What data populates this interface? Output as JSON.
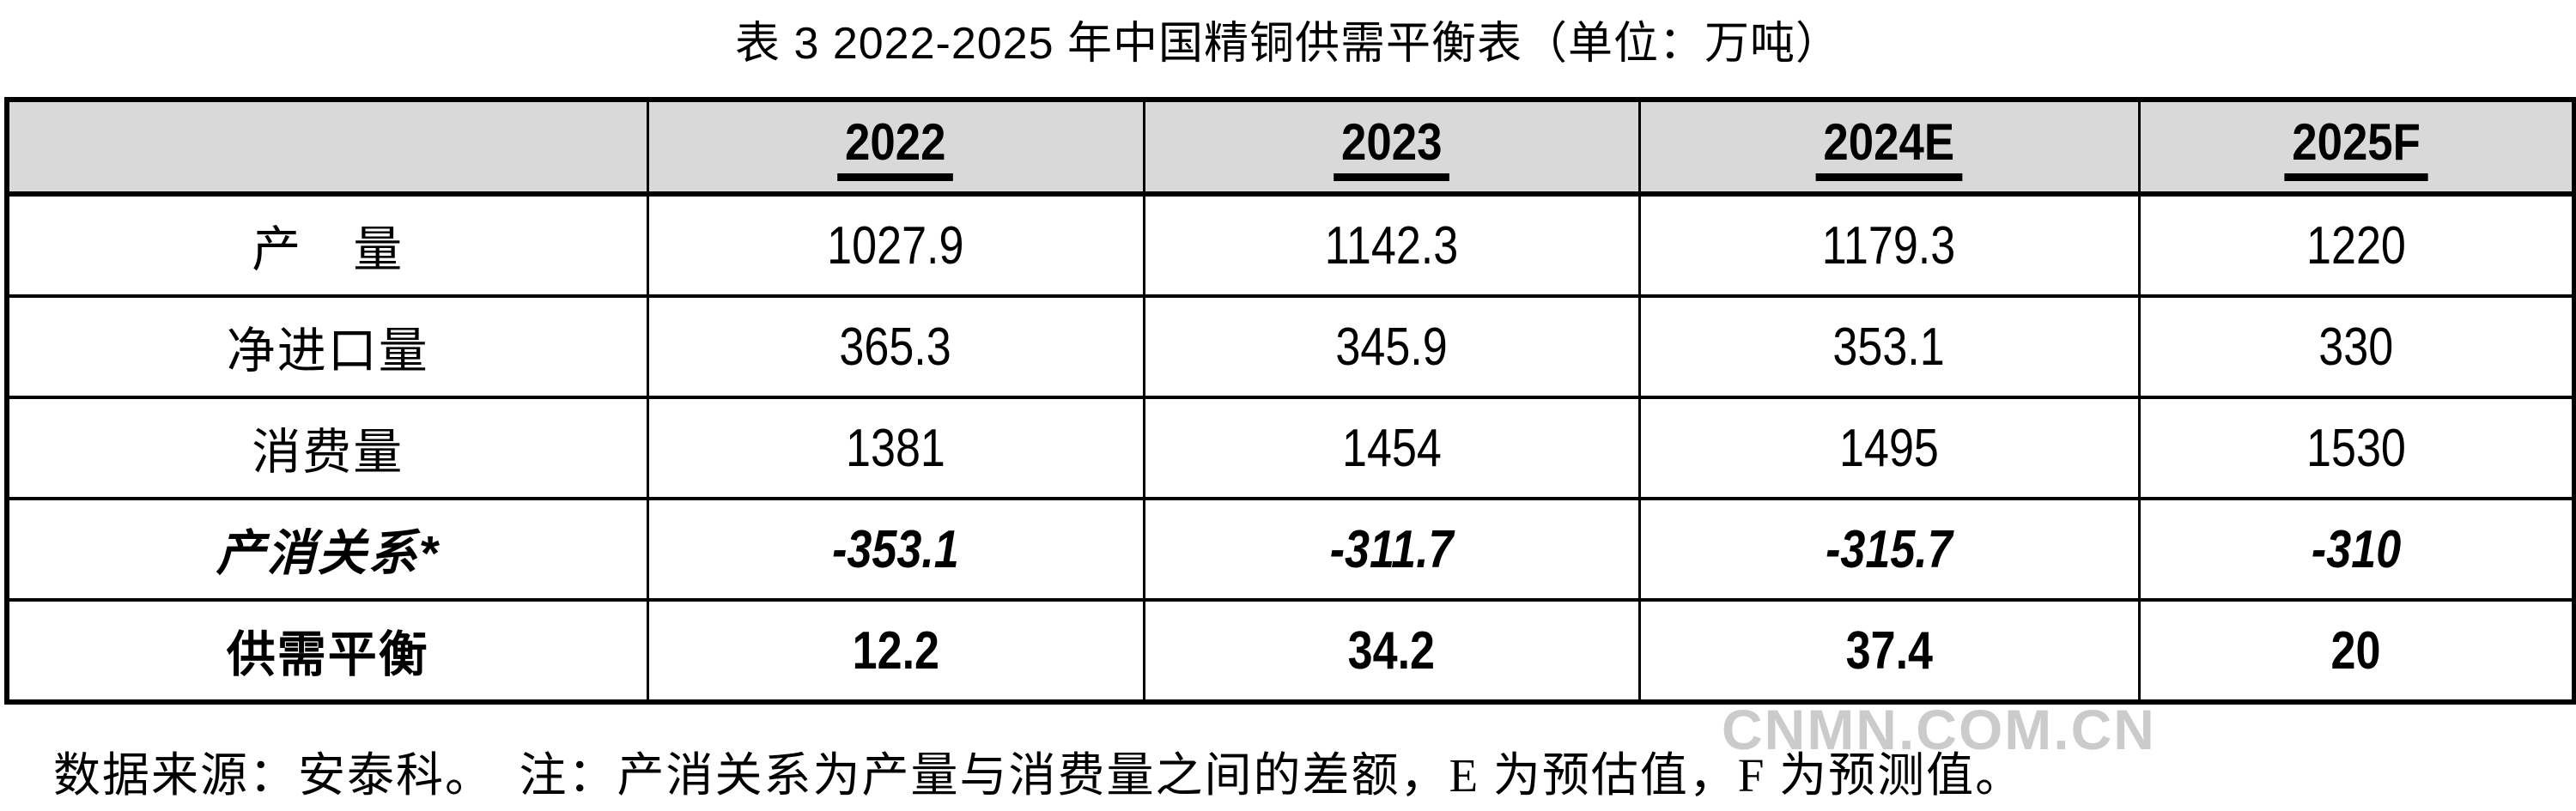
{
  "title": "表 3 2022-2025 年中国精铜供需平衡表（单位：万吨）",
  "table": {
    "header": {
      "label": "",
      "years": [
        "2022",
        "2023",
        "2024E",
        "2025F"
      ]
    },
    "rows": [
      {
        "label": "产　量",
        "values": [
          "1027.9",
          "1142.3",
          "1179.3",
          "1220"
        ]
      },
      {
        "label": "净进口量",
        "values": [
          "365.3",
          "345.9",
          "353.1",
          "330"
        ]
      },
      {
        "label": "消费量",
        "values": [
          "1381",
          "1454",
          "1495",
          "1530"
        ]
      },
      {
        "label": "产消关系*",
        "values": [
          "-353.1",
          "-311.7",
          "-315.7",
          "-310"
        ]
      },
      {
        "label": "供需平衡",
        "values": [
          "12.2",
          "34.2",
          "37.4",
          "20"
        ]
      }
    ]
  },
  "footnote": "数据来源：安泰科。　注：产消关系为产量与消费量之间的差额，E 为预估值，F 为预测值。",
  "watermark": "CNMN.COM.CN",
  "colors": {
    "header_bg": "#d9d9d9",
    "border": "#000000",
    "text": "#000000",
    "watermark": "#c3c3c3"
  },
  "chart_data": {
    "type": "table",
    "title": "表 3 2022-2025 年中国精铜供需平衡表",
    "unit": "万吨",
    "columns": [
      "2022",
      "2023",
      "2024E",
      "2025F"
    ],
    "rows": [
      {
        "label": "产量",
        "values": [
          1027.9,
          1142.3,
          1179.3,
          1220
        ]
      },
      {
        "label": "净进口量",
        "values": [
          365.3,
          345.9,
          353.1,
          330
        ]
      },
      {
        "label": "消费量",
        "values": [
          1381,
          1454,
          1495,
          1530
        ]
      },
      {
        "label": "产消关系*",
        "values": [
          -353.1,
          -311.7,
          -315.7,
          -310
        ]
      },
      {
        "label": "供需平衡",
        "values": [
          12.2,
          34.2,
          37.4,
          20
        ]
      }
    ],
    "notes": "产消关系为产量与消费量之间的差额；E 为预估值；F 为预测值；数据来源：安泰科"
  }
}
